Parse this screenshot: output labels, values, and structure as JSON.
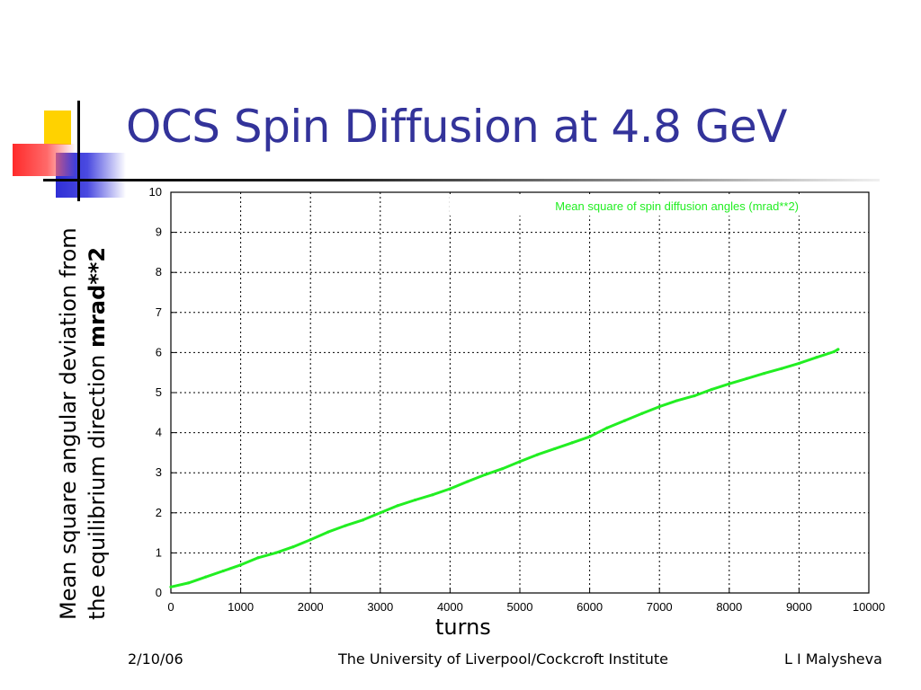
{
  "slide": {
    "title": "OCS Spin Diffusion at 4.8 GeV",
    "ylabel_line1": "Mean square angular deviation from",
    "ylabel_line2_prefix": "the equilibrium direction ",
    "ylabel_line2_bold": "mrad**2",
    "xlabel": "turns",
    "footer_date": "2/10/06",
    "footer_institution": "The University of Liverpool/Cockcroft Institute",
    "footer_author": "L I Malysheva",
    "colors": {
      "title": "#33339a",
      "accent_yellow": "#ffd200",
      "accent_blue": "#2f2fd6",
      "accent_red": "#ff2a2a"
    }
  },
  "chart_data": {
    "type": "line",
    "legend": "Mean square of spin diffusion angles (mrad**2)",
    "legend_position": "top-right",
    "series_color": "#22ee22",
    "grid": true,
    "xlim": [
      0,
      10000
    ],
    "ylim": [
      0,
      10
    ],
    "x_ticks": [
      0,
      1000,
      2000,
      3000,
      4000,
      5000,
      6000,
      7000,
      8000,
      9000,
      10000
    ],
    "y_ticks": [
      0,
      1,
      2,
      3,
      4,
      5,
      6,
      7,
      8,
      9,
      10
    ],
    "x_tick_labels": [
      "0",
      "1000",
      "2000",
      "3000",
      "4000",
      "5000",
      "6000",
      "7000",
      "8000",
      "9000",
      "10000"
    ],
    "y_tick_labels": [
      "0",
      "1",
      "2",
      "3",
      "4",
      "5",
      "6",
      "7",
      "8",
      "9",
      "10"
    ],
    "series": [
      {
        "x": [
          0,
          250,
          500,
          750,
          1000,
          1250,
          1500,
          1750,
          2000,
          2250,
          2500,
          2750,
          3000,
          3250,
          3500,
          3750,
          4000,
          4250,
          4500,
          4750,
          5000,
          5250,
          5500,
          5750,
          6000,
          6250,
          6500,
          6750,
          7000,
          7250,
          7500,
          7750,
          8000,
          8250,
          8500,
          8750,
          9000,
          9250,
          9500,
          9560
        ],
        "y": [
          0.15,
          0.25,
          0.4,
          0.55,
          0.7,
          0.88,
          1.0,
          1.15,
          1.33,
          1.52,
          1.68,
          1.82,
          2.0,
          2.18,
          2.32,
          2.45,
          2.6,
          2.78,
          2.95,
          3.1,
          3.28,
          3.45,
          3.6,
          3.75,
          3.9,
          4.12,
          4.3,
          4.48,
          4.65,
          4.8,
          4.92,
          5.08,
          5.22,
          5.35,
          5.48,
          5.6,
          5.73,
          5.88,
          6.02,
          6.08
        ]
      }
    ]
  }
}
